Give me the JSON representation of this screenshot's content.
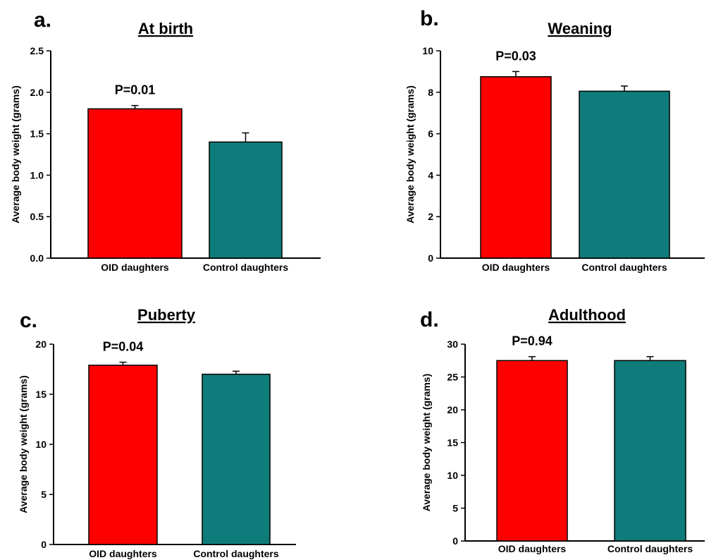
{
  "chart_data": [
    {
      "type": "bar",
      "panel": "a.",
      "title": "At birth",
      "ylabel": "Average body weight (grams)",
      "categories": [
        "OID daughters",
        "Control daughters"
      ],
      "values": [
        1.8,
        1.4
      ],
      "errors": [
        0.04,
        0.11
      ],
      "colors": [
        "#ff0000",
        "#0e7c7b"
      ],
      "ylim": [
        0,
        2.5
      ],
      "yticks": [
        "0.0",
        "0.5",
        "1.0",
        "1.5",
        "2.0",
        "2.5"
      ],
      "annotation": "P=0.01"
    },
    {
      "type": "bar",
      "panel": "b.",
      "title": "Weaning",
      "ylabel": "Average body weight (grams)",
      "categories": [
        "OID daughters",
        "Control daughters"
      ],
      "values": [
        8.75,
        8.05
      ],
      "errors": [
        0.25,
        0.25
      ],
      "colors": [
        "#ff0000",
        "#0e7c7b"
      ],
      "ylim": [
        0,
        10
      ],
      "yticks": [
        "0",
        "2",
        "4",
        "6",
        "8",
        "10"
      ],
      "annotation": "P=0.03"
    },
    {
      "type": "bar",
      "panel": "c.",
      "title": "Puberty",
      "ylabel": "Average body weight (grams)",
      "categories": [
        "OID daughters",
        "Control daughters"
      ],
      "values": [
        17.9,
        17.0
      ],
      "errors": [
        0.3,
        0.3
      ],
      "colors": [
        "#ff0000",
        "#0e7c7b"
      ],
      "ylim": [
        0,
        20
      ],
      "yticks": [
        "0",
        "5",
        "10",
        "15",
        "20"
      ],
      "annotation": "P=0.04"
    },
    {
      "type": "bar",
      "panel": "d.",
      "title": "Adulthood",
      "ylabel": "Average body weight (grams)",
      "categories": [
        "OID daughters",
        "Control daughters"
      ],
      "values": [
        27.5,
        27.5
      ],
      "errors": [
        0.6,
        0.6
      ],
      "colors": [
        "#ff0000",
        "#0e7c7b"
      ],
      "ylim": [
        0,
        30
      ],
      "yticks": [
        "0",
        "5",
        "10",
        "15",
        "20",
        "25",
        "30"
      ],
      "annotation": "P=0.94"
    }
  ]
}
